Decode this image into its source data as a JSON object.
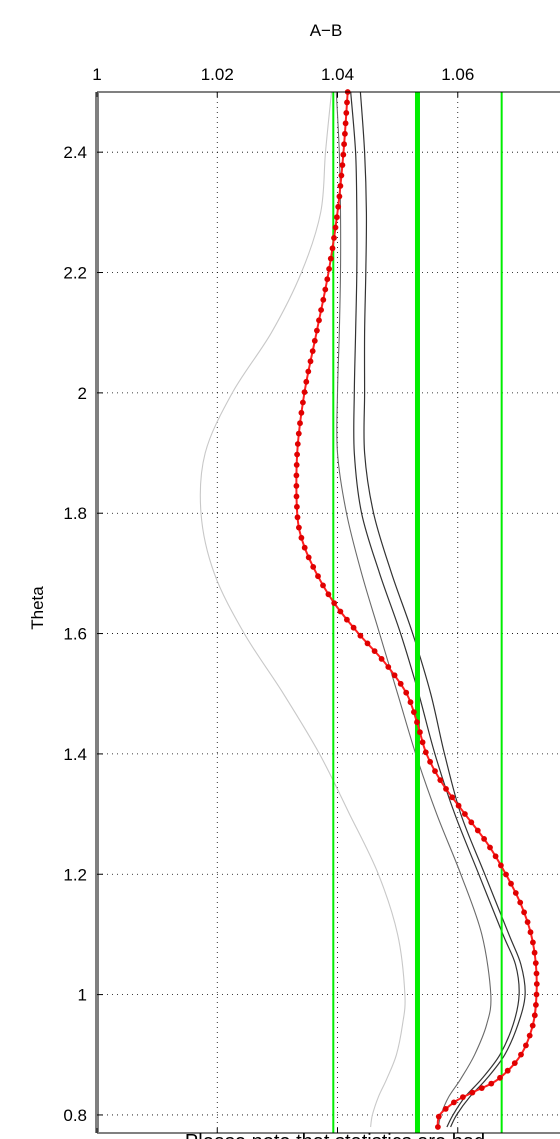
{
  "chart_data": {
    "type": "line",
    "title": "A−B",
    "xlabel": "",
    "ylabel": "Theta",
    "x_axis_position": "top",
    "xlim": [
      1,
      1.078
    ],
    "ylim": [
      0.77,
      2.5
    ],
    "x_ticks": [
      1,
      1.02,
      1.04,
      1.06
    ],
    "x_tick_labels": [
      "1",
      "1.02",
      "1.04",
      "1.06"
    ],
    "y_ticks": [
      0.8,
      1.0,
      1.2,
      1.4,
      1.6,
      1.8,
      2.0,
      2.2,
      2.4
    ],
    "y_tick_labels": [
      "0.8",
      "1",
      "1.2",
      "1.4",
      "1.6",
      "1.8",
      "2",
      "2.2",
      "2.4"
    ],
    "grid": true,
    "annotation": "Please note that statistics are bad",
    "colors": {
      "main": "#ff2020",
      "marker": "#e00000",
      "vertical_lines": "#00ee00",
      "band_dark": "#333333",
      "band_mid": "#6a6a6a",
      "band_light": "#c8c8c8",
      "left_edge": "#808080",
      "annotation": "#ff0000"
    },
    "vertical_lines": [
      {
        "x": 1.0393,
        "width": "thin"
      },
      {
        "x": 1.0533,
        "width": "thick"
      },
      {
        "x": 1.0673,
        "width": "thin"
      }
    ],
    "series": [
      {
        "role": "main",
        "points": [
          [
            1.0417,
            2.5
          ],
          [
            1.041,
            2.4
          ],
          [
            1.04,
            2.3
          ],
          [
            1.0385,
            2.2
          ],
          [
            1.0365,
            2.1
          ],
          [
            1.0345,
            2.0
          ],
          [
            1.0333,
            1.9
          ],
          [
            1.0333,
            1.8
          ],
          [
            1.0343,
            1.75
          ],
          [
            1.0365,
            1.7
          ],
          [
            1.0395,
            1.65
          ],
          [
            1.0435,
            1.6
          ],
          [
            1.048,
            1.55
          ],
          [
            1.0515,
            1.5
          ],
          [
            1.0533,
            1.45
          ],
          [
            1.0548,
            1.4
          ],
          [
            1.0575,
            1.35
          ],
          [
            1.0612,
            1.3
          ],
          [
            1.065,
            1.25
          ],
          [
            1.068,
            1.2
          ],
          [
            1.0705,
            1.15
          ],
          [
            1.0722,
            1.1
          ],
          [
            1.073,
            1.05
          ],
          [
            1.0731,
            1.0
          ],
          [
            1.0725,
            0.95
          ],
          [
            1.0705,
            0.9
          ],
          [
            1.0668,
            0.86
          ],
          [
            1.063,
            0.84
          ],
          [
            1.06,
            0.825
          ],
          [
            1.058,
            0.81
          ],
          [
            1.057,
            0.8
          ],
          [
            1.0567,
            0.79
          ],
          [
            1.0567,
            0.78
          ]
        ]
      },
      {
        "role": "band_dark_1",
        "points": [
          [
            1.0438,
            2.5
          ],
          [
            1.0445,
            2.4
          ],
          [
            1.0448,
            2.3
          ],
          [
            1.0447,
            2.2
          ],
          [
            1.0445,
            2.1
          ],
          [
            1.0445,
            2.0
          ],
          [
            1.0445,
            1.9
          ],
          [
            1.046,
            1.8
          ],
          [
            1.049,
            1.7
          ],
          [
            1.0525,
            1.6
          ],
          [
            1.0555,
            1.5
          ],
          [
            1.0578,
            1.4
          ],
          [
            1.0605,
            1.3
          ],
          [
            1.0645,
            1.2
          ],
          [
            1.0685,
            1.1
          ],
          [
            1.0705,
            1.05
          ],
          [
            1.0712,
            1.0
          ],
          [
            1.07,
            0.95
          ],
          [
            1.0678,
            0.9
          ],
          [
            1.0648,
            0.86
          ],
          [
            1.062,
            0.83
          ],
          [
            1.0598,
            0.8
          ],
          [
            1.0588,
            0.78
          ]
        ]
      },
      {
        "role": "band_dark_2",
        "points": [
          [
            1.0422,
            2.5
          ],
          [
            1.043,
            2.4
          ],
          [
            1.0432,
            2.3
          ],
          [
            1.0432,
            2.2
          ],
          [
            1.043,
            2.1
          ],
          [
            1.0428,
            2.0
          ],
          [
            1.0428,
            1.9
          ],
          [
            1.044,
            1.8
          ],
          [
            1.047,
            1.7
          ],
          [
            1.0505,
            1.6
          ],
          [
            1.0535,
            1.5
          ],
          [
            1.0562,
            1.4
          ],
          [
            1.0595,
            1.3
          ],
          [
            1.0635,
            1.2
          ],
          [
            1.0675,
            1.1
          ],
          [
            1.0696,
            1.05
          ],
          [
            1.0702,
            1.0
          ],
          [
            1.0692,
            0.95
          ],
          [
            1.067,
            0.9
          ],
          [
            1.064,
            0.86
          ],
          [
            1.0612,
            0.83
          ],
          [
            1.0592,
            0.8
          ],
          [
            1.0582,
            0.78
          ]
        ]
      },
      {
        "role": "band_mid",
        "points": [
          [
            1.0398,
            2.5
          ],
          [
            1.0403,
            2.4
          ],
          [
            1.0405,
            2.3
          ],
          [
            1.0405,
            2.2
          ],
          [
            1.0403,
            2.1
          ],
          [
            1.04,
            2.0
          ],
          [
            1.04,
            1.9
          ],
          [
            1.0415,
            1.8
          ],
          [
            1.044,
            1.7
          ],
          [
            1.047,
            1.6
          ],
          [
            1.05,
            1.5
          ],
          [
            1.053,
            1.4
          ],
          [
            1.0565,
            1.3
          ],
          [
            1.0605,
            1.2
          ],
          [
            1.064,
            1.1
          ],
          [
            1.0655,
            1.0
          ],
          [
            1.0648,
            0.95
          ],
          [
            1.0628,
            0.9
          ],
          [
            1.0605,
            0.86
          ],
          [
            1.0585,
            0.83
          ],
          [
            1.0572,
            0.8
          ],
          [
            1.0568,
            0.78
          ]
        ]
      },
      {
        "role": "band_light",
        "points": [
          [
            1.039,
            2.5
          ],
          [
            1.038,
            2.4
          ],
          [
            1.0372,
            2.3
          ],
          [
            1.034,
            2.2
          ],
          [
            1.029,
            2.1
          ],
          [
            1.0225,
            2.0
          ],
          [
            1.018,
            1.9
          ],
          [
            1.0173,
            1.8
          ],
          [
            1.0195,
            1.7
          ],
          [
            1.0245,
            1.6
          ],
          [
            1.031,
            1.5
          ],
          [
            1.037,
            1.4
          ],
          [
            1.042,
            1.3
          ],
          [
            1.0468,
            1.2
          ],
          [
            1.05,
            1.1
          ],
          [
            1.0512,
            1.0
          ],
          [
            1.0508,
            0.95
          ],
          [
            1.0498,
            0.9
          ],
          [
            1.0482,
            0.86
          ],
          [
            1.0468,
            0.83
          ],
          [
            1.0458,
            0.8
          ],
          [
            1.0455,
            0.78
          ]
        ]
      }
    ]
  }
}
